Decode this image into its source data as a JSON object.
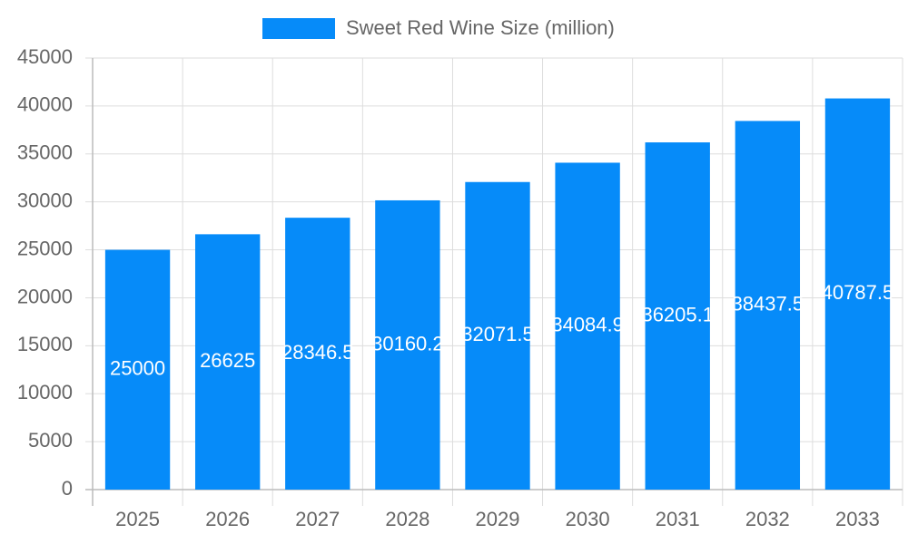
{
  "chart_data": {
    "type": "bar",
    "categories": [
      "2025",
      "2026",
      "2027",
      "2028",
      "2029",
      "2030",
      "2031",
      "2032",
      "2033"
    ],
    "series": [
      {
        "name": "Sweet Red Wine Size (million)",
        "color": "#068bf9",
        "values": [
          25000,
          26625,
          28346.5,
          30160.2,
          32071.5,
          34084.9,
          36205.1,
          38437.5,
          40787.5
        ]
      }
    ],
    "ylim": [
      0,
      45000
    ],
    "yticks": [
      0,
      5000,
      10000,
      15000,
      20000,
      25000,
      30000,
      35000,
      40000,
      45000
    ],
    "grid": true,
    "legend": "top",
    "data_labels": true
  }
}
